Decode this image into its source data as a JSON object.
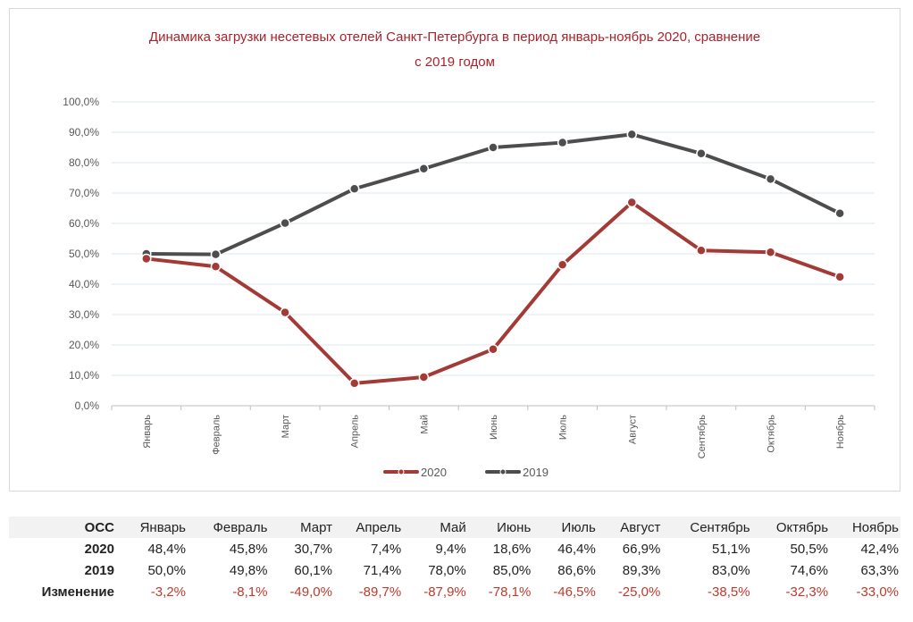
{
  "chart_data": {
    "type": "line",
    "title_lines": [
      "Динамика загрузки несетевых отелей Санкт-Петербурга в период январь-ноябрь 2020, сравнение",
      "с 2019 годом"
    ],
    "categories": [
      "Январь",
      "Февраль",
      "Март",
      "Апрель",
      "Май",
      "Июнь",
      "Июль",
      "Август",
      "Сентябрь",
      "Октябрь",
      "Ноябрь"
    ],
    "series": [
      {
        "name": "2020",
        "color": "#a33a36",
        "values": [
          48.4,
          45.8,
          30.7,
          7.4,
          9.4,
          18.6,
          46.4,
          66.9,
          51.1,
          50.5,
          42.4
        ]
      },
      {
        "name": "2019",
        "color": "#4d4d4d",
        "values": [
          50.0,
          49.8,
          60.1,
          71.4,
          78.0,
          85.0,
          86.6,
          89.3,
          83.0,
          74.6,
          63.3
        ]
      }
    ],
    "ylim": [
      0,
      100
    ],
    "yticks": [
      "0,0%",
      "10,0%",
      "20,0%",
      "30,0%",
      "40,0%",
      "50,0%",
      "60,0%",
      "70,0%",
      "80,0%",
      "90,0%",
      "100,0%"
    ],
    "grid": true,
    "legend_position": "bottom"
  },
  "table": {
    "header_label": "ОСС",
    "months": [
      "Январь",
      "Февраль",
      "Март",
      "Апрель",
      "Май",
      "Июнь",
      "Июль",
      "Август",
      "Сентябрь",
      "Октябрь",
      "Ноябрь"
    ],
    "rows": [
      {
        "label": "2020",
        "values": [
          "48,4%",
          "45,8%",
          "30,7%",
          "7,4%",
          "9,4%",
          "18,6%",
          "46,4%",
          "66,9%",
          "51,1%",
          "50,5%",
          "42,4%"
        ]
      },
      {
        "label": "2019",
        "values": [
          "50,0%",
          "49,8%",
          "60,1%",
          "71,4%",
          "78,0%",
          "85,0%",
          "86,6%",
          "89,3%",
          "83,0%",
          "74,6%",
          "63,3%"
        ]
      },
      {
        "label": "Изменение",
        "values": [
          "-3,2%",
          "-8,1%",
          "-49,0%",
          "-89,7%",
          "-87,9%",
          "-78,1%",
          "-46,5%",
          "-25,0%",
          "-38,5%",
          "-32,3%",
          "-33,0%"
        ]
      }
    ]
  }
}
